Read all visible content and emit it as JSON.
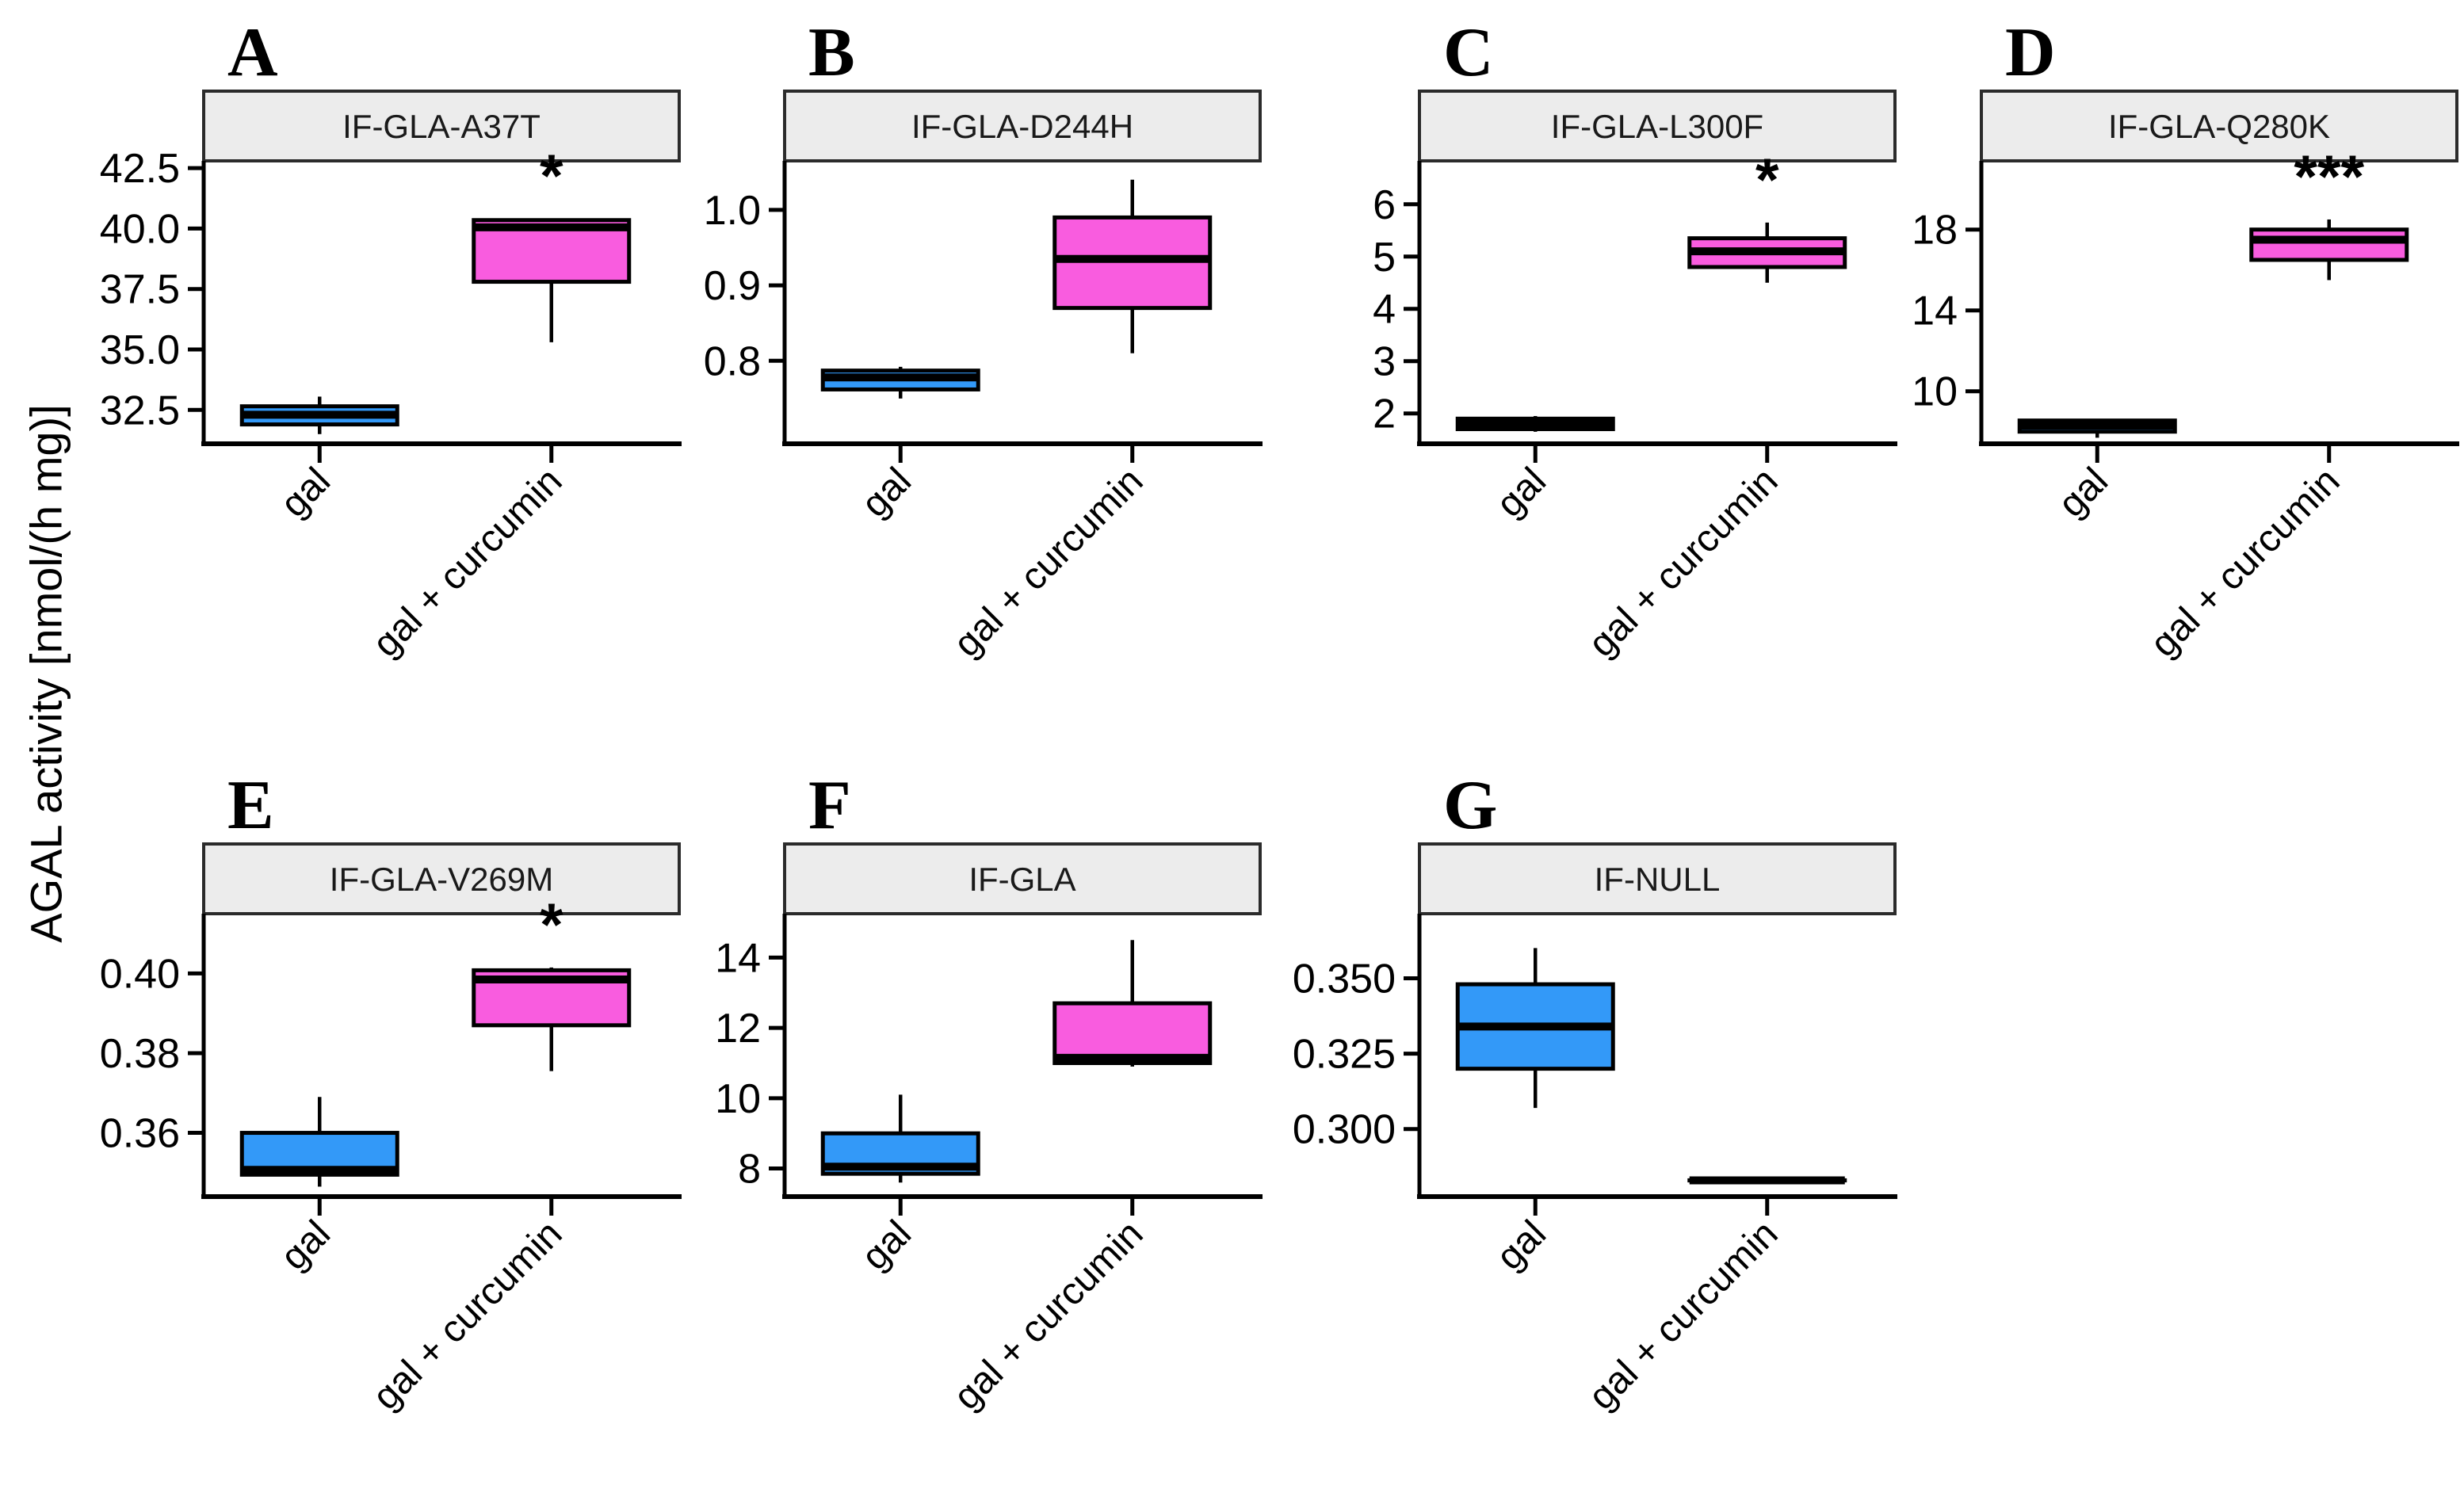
{
  "figure": {
    "y_axis_label": "AGAL activity [nmol/(h mg)]",
    "categories": [
      "gal",
      "gal + curcumin"
    ],
    "colors": {
      "gal": "#3399F8",
      "gal_curcumin": "#F95CDF",
      "facet_bg": "#ECECEC",
      "facet_border": "#2B2B2B",
      "axis": "#000000",
      "text": "#000000",
      "facet_text": "#1A1A1A"
    }
  },
  "chart_data": [
    {
      "type": "box",
      "panel_letter": "A",
      "facet_label": "IF-GLA-A37T",
      "col": 0,
      "row": 0,
      "ylim": [
        31.1,
        42.8
      ],
      "y_ticks": [
        {
          "label": "42.5",
          "value": 42.5
        },
        {
          "label": "40.0",
          "value": 40.0
        },
        {
          "label": "37.5",
          "value": 37.5
        },
        {
          "label": "35.0",
          "value": 35.0
        },
        {
          "label": "32.5",
          "value": 32.5
        }
      ],
      "groups": [
        {
          "category": "gal",
          "color_key": "gal",
          "whisker_low": 31.5,
          "q1": 31.9,
          "median": 32.3,
          "q3": 32.65,
          "whisker_high": 33.05,
          "significance": ""
        },
        {
          "category": "gal + curcumin",
          "color_key": "gal_curcumin",
          "whisker_low": 35.3,
          "q1": 37.8,
          "median": 40.05,
          "q3": 40.35,
          "whisker_high": 40.4,
          "significance": "*"
        }
      ]
    },
    {
      "type": "box",
      "panel_letter": "B",
      "facet_label": "IF-GLA-D244H",
      "col": 1,
      "row": 0,
      "ylim": [
        0.69,
        1.065
      ],
      "y_ticks": [
        {
          "label": "1.0",
          "value": 1.0
        },
        {
          "label": "0.9",
          "value": 0.9
        },
        {
          "label": "0.8",
          "value": 0.8
        }
      ],
      "groups": [
        {
          "category": "gal",
          "color_key": "gal",
          "whisker_low": 0.75,
          "q1": 0.762,
          "median": 0.778,
          "q3": 0.787,
          "whisker_high": 0.792,
          "significance": ""
        },
        {
          "category": "gal + curcumin",
          "color_key": "gal_curcumin",
          "whisker_low": 0.81,
          "q1": 0.87,
          "median": 0.935,
          "q3": 0.99,
          "whisker_high": 1.04,
          "significance": ""
        }
      ]
    },
    {
      "type": "box",
      "panel_letter": "C",
      "facet_label": "IF-GLA-L300F",
      "col": 2,
      "row": 0,
      "ylim": [
        1.42,
        6.83
      ],
      "y_ticks": [
        {
          "label": "6",
          "value": 6
        },
        {
          "label": "5",
          "value": 5
        },
        {
          "label": "4",
          "value": 4
        },
        {
          "label": "3",
          "value": 3
        },
        {
          "label": "2",
          "value": 2
        }
      ],
      "groups": [
        {
          "category": "gal",
          "color_key": "gal",
          "whisker_low": 1.65,
          "q1": 1.7,
          "median": 1.8,
          "q3": 1.9,
          "whisker_high": 1.95,
          "significance": ""
        },
        {
          "category": "gal + curcumin",
          "color_key": "gal_curcumin",
          "whisker_low": 4.5,
          "q1": 4.8,
          "median": 5.1,
          "q3": 5.35,
          "whisker_high": 5.65,
          "significance": "*"
        }
      ]
    },
    {
      "type": "box",
      "panel_letter": "D",
      "facet_label": "IF-GLA-Q280K",
      "col": 3,
      "row": 0,
      "ylim": [
        7.4,
        21.4
      ],
      "y_ticks": [
        {
          "label": "18",
          "value": 18
        },
        {
          "label": "14",
          "value": 14
        },
        {
          "label": "10",
          "value": 10
        }
      ],
      "groups": [
        {
          "category": "gal",
          "color_key": "gal",
          "whisker_low": 7.7,
          "q1": 8.0,
          "median": 8.3,
          "q3": 8.55,
          "whisker_high": 8.6,
          "significance": ""
        },
        {
          "category": "gal + curcumin",
          "color_key": "gal_curcumin",
          "whisker_low": 15.5,
          "q1": 16.5,
          "median": 17.5,
          "q3": 18.0,
          "whisker_high": 18.5,
          "significance": "***"
        }
      ]
    },
    {
      "type": "box",
      "panel_letter": "E",
      "facet_label": "IF-GLA-V269M",
      "col": 0,
      "row": 1,
      "ylim": [
        0.344,
        0.415
      ],
      "y_ticks": [
        {
          "label": "0.40",
          "value": 0.4
        },
        {
          "label": "0.38",
          "value": 0.38
        },
        {
          "label": "0.36",
          "value": 0.36
        }
      ],
      "groups": [
        {
          "category": "gal",
          "color_key": "gal",
          "whisker_low": 0.3465,
          "q1": 0.3495,
          "median": 0.3507,
          "q3": 0.36,
          "whisker_high": 0.369,
          "significance": ""
        },
        {
          "category": "gal + curcumin",
          "color_key": "gal_curcumin",
          "whisker_low": 0.3755,
          "q1": 0.387,
          "median": 0.3985,
          "q3": 0.4008,
          "whisker_high": 0.4015,
          "significance": "*"
        }
      ]
    },
    {
      "type": "box",
      "panel_letter": "F",
      "facet_label": "IF-GLA",
      "col": 1,
      "row": 1,
      "ylim": [
        7.2,
        15.25
      ],
      "y_ticks": [
        {
          "label": "14",
          "value": 14
        },
        {
          "label": "12",
          "value": 12
        },
        {
          "label": "10",
          "value": 10
        },
        {
          "label": "8",
          "value": 8
        }
      ],
      "groups": [
        {
          "category": "gal",
          "color_key": "gal",
          "whisker_low": 7.6,
          "q1": 7.85,
          "median": 8.05,
          "q3": 9.0,
          "whisker_high": 10.1,
          "significance": ""
        },
        {
          "category": "gal + curcumin",
          "color_key": "gal_curcumin",
          "whisker_low": 10.9,
          "q1": 11.0,
          "median": 11.15,
          "q3": 12.7,
          "whisker_high": 14.5,
          "significance": ""
        }
      ]
    },
    {
      "type": "box",
      "panel_letter": "G",
      "facet_label": "IF-NULL",
      "col": 2,
      "row": 1,
      "ylim": [
        0.2776,
        0.3714
      ],
      "y_ticks": [
        {
          "label": "0.350",
          "value": 0.35
        },
        {
          "label": "0.325",
          "value": 0.325
        },
        {
          "label": "0.300",
          "value": 0.3
        }
      ],
      "groups": [
        {
          "category": "gal",
          "color_key": "gal",
          "whisker_low": 0.307,
          "q1": 0.32,
          "median": 0.334,
          "q3": 0.348,
          "whisker_high": 0.36,
          "significance": ""
        },
        {
          "category": "gal + curcumin",
          "color_key": "gal_curcumin",
          "whisker_low": 0.283,
          "q1": 0.283,
          "median": 0.283,
          "q3": 0.283,
          "whisker_high": 0.283,
          "significance": ""
        }
      ]
    }
  ]
}
